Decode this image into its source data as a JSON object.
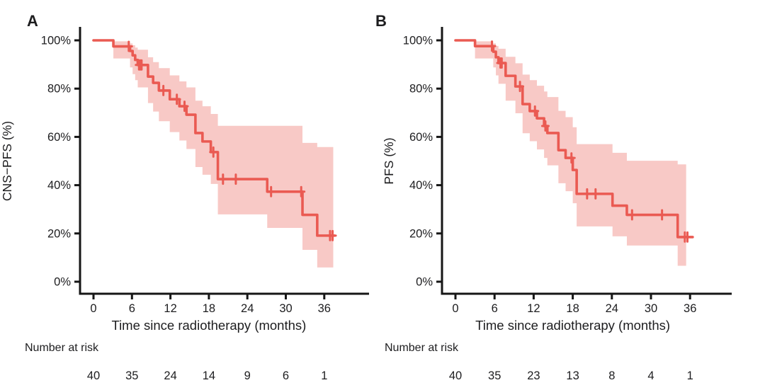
{
  "figure": {
    "background": "#ffffff",
    "text_color": "#1d1d1f",
    "axis_color": "#161616",
    "line_color": "#ea5a52",
    "band_color": "#f8c9c6"
  },
  "chart_data": [
    {
      "type": "line",
      "curve": "kaplan-meier",
      "panel_label": "A",
      "ylabel": "CNS−PFS (%)",
      "xlabel": "Time since radiotherapy (months)",
      "risk_title": "Number at risk",
      "xlim": [
        0,
        43
      ],
      "ylim": [
        0,
        100
      ],
      "grid": false,
      "legend": false,
      "x_tick_values": [
        0,
        6,
        12,
        18,
        24,
        30,
        36
      ],
      "x_tick_labels": [
        "0",
        "6",
        "12",
        "18",
        "24",
        "30",
        "36"
      ],
      "y_tick_values": [
        100,
        80,
        60,
        40,
        20,
        0
      ],
      "y_tick_labels": [
        "100%",
        "80%",
        "60%",
        "40%",
        "20%",
        "0%"
      ],
      "km_steps": [
        [
          0,
          100
        ],
        [
          3.1,
          97.5
        ],
        [
          5.7,
          95.6
        ],
        [
          6.1,
          93.8
        ],
        [
          6.5,
          91.9
        ],
        [
          6.9,
          89.8
        ],
        [
          8.5,
          85.0
        ],
        [
          9.3,
          82.4
        ],
        [
          10.2,
          79.2
        ],
        [
          11.9,
          75.6
        ],
        [
          13.4,
          72.7
        ],
        [
          14.5,
          69.2
        ],
        [
          15.9,
          61.6
        ],
        [
          17.0,
          58.1
        ],
        [
          18.3,
          53.7
        ],
        [
          19.4,
          42.5
        ],
        [
          27.1,
          37.3
        ],
        [
          32.6,
          27.7
        ],
        [
          34.9,
          19.1
        ]
      ],
      "curve_end": 37.6,
      "censor_times": [
        5.5,
        7.1,
        7.3,
        7.5,
        10.9,
        13.0,
        14.2,
        18.7,
        20.2,
        22.2,
        27.7,
        32.4,
        36.9,
        37.3
      ],
      "ci_steps": [
        [
          3.1,
          92.5,
          99.6
        ],
        [
          5.7,
          88.8,
          98.7
        ],
        [
          6.1,
          86.0,
          98.0
        ],
        [
          6.5,
          83.5,
          97.0
        ],
        [
          6.9,
          80.5,
          96.1
        ],
        [
          8.5,
          74.0,
          93.0
        ],
        [
          9.3,
          70.5,
          91.0
        ],
        [
          10.2,
          66.5,
          88.5
        ],
        [
          11.9,
          62.0,
          85.5
        ],
        [
          13.4,
          58.5,
          83.0
        ],
        [
          14.5,
          55.0,
          80.5
        ],
        [
          15.9,
          47.5,
          75.0
        ],
        [
          17.0,
          44.3,
          72.7
        ],
        [
          18.3,
          40.5,
          69.5
        ],
        [
          19.4,
          27.9,
          64.6
        ],
        [
          27.1,
          22.3,
          64.6
        ],
        [
          32.6,
          13.2,
          57.5
        ],
        [
          34.9,
          5.9,
          55.8
        ]
      ],
      "ci_end": 37.4,
      "number_at_risk": {
        "times": [
          0,
          6,
          12,
          18,
          24,
          30,
          36
        ],
        "counts": [
          "40",
          "35",
          "24",
          "14",
          "9",
          "6",
          "1"
        ]
      }
    },
    {
      "type": "line",
      "curve": "kaplan-meier",
      "panel_label": "B",
      "ylabel": "PFS (%)",
      "xlabel": "Time since radiotherapy (months)",
      "risk_title": "Number at risk",
      "xlim": [
        0,
        43
      ],
      "ylim": [
        0,
        100
      ],
      "grid": false,
      "legend": false,
      "x_tick_values": [
        0,
        6,
        12,
        18,
        24,
        30,
        36
      ],
      "x_tick_labels": [
        "0",
        "6",
        "12",
        "18",
        "24",
        "30",
        "36"
      ],
      "y_tick_values": [
        100,
        80,
        60,
        40,
        20,
        0
      ],
      "y_tick_labels": [
        "100%",
        "80%",
        "60%",
        "40%",
        "20%",
        "0%"
      ],
      "km_steps": [
        [
          0,
          100
        ],
        [
          3.0,
          97.6
        ],
        [
          5.8,
          95.3
        ],
        [
          6.2,
          93.0
        ],
        [
          6.6,
          90.6
        ],
        [
          7.7,
          85.3
        ],
        [
          9.2,
          80.9
        ],
        [
          10.3,
          73.6
        ],
        [
          11.4,
          70.7
        ],
        [
          12.5,
          67.7
        ],
        [
          13.6,
          64.5
        ],
        [
          14.1,
          61.6
        ],
        [
          15.8,
          54.5
        ],
        [
          16.9,
          51.3
        ],
        [
          18.0,
          46.3
        ],
        [
          18.6,
          36.4
        ],
        [
          24.1,
          31.5
        ],
        [
          26.3,
          27.7
        ],
        [
          34.1,
          18.5
        ]
      ],
      "curve_end": 36.4,
      "censor_times": [
        5.6,
        6.9,
        7.1,
        9.9,
        12.2,
        13.8,
        17.8,
        20.2,
        21.5,
        27.1,
        31.7,
        35.2,
        35.6
      ],
      "ci_steps": [
        [
          3.0,
          92.5,
          99.6
        ],
        [
          5.8,
          88.8,
          98.7
        ],
        [
          6.2,
          85.5,
          97.7
        ],
        [
          6.6,
          82.0,
          96.5
        ],
        [
          7.7,
          75.0,
          93.2
        ],
        [
          9.2,
          69.8,
          90.5
        ],
        [
          10.3,
          61.5,
          85.8
        ],
        [
          11.4,
          58.2,
          83.5
        ],
        [
          12.5,
          54.8,
          81.2
        ],
        [
          13.6,
          51.3,
          78.8
        ],
        [
          14.1,
          48.2,
          76.5
        ],
        [
          15.8,
          40.8,
          70.8
        ],
        [
          16.9,
          37.5,
          68.2
        ],
        [
          18.0,
          32.5,
          64.0
        ],
        [
          18.6,
          22.9,
          57.0
        ],
        [
          24.1,
          18.8,
          53.4
        ],
        [
          26.3,
          15.0,
          50.1
        ],
        [
          34.1,
          6.6,
          48.6
        ]
      ],
      "ci_end": 35.4,
      "number_at_risk": {
        "times": [
          0,
          6,
          12,
          18,
          24,
          30,
          36
        ],
        "counts": [
          "40",
          "35",
          "23",
          "13",
          "8",
          "4",
          "1"
        ]
      }
    }
  ]
}
